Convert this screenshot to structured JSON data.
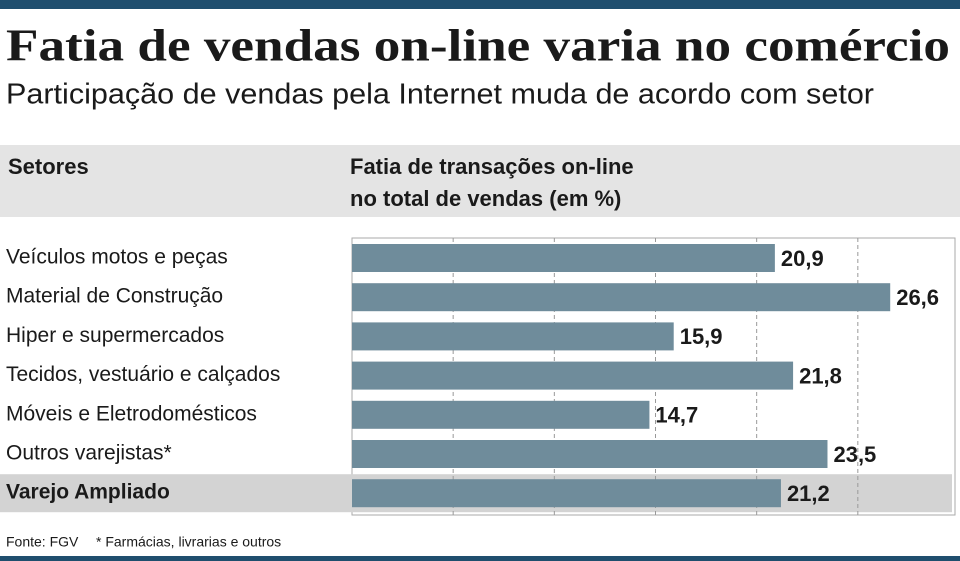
{
  "chart_data": {
    "type": "barh",
    "title": "Fatia de vendas on-line varia no comércio",
    "subtitle": "Participação de vendas pela Internet muda de acordo com setor",
    "category_header": "Setores",
    "value_header": [
      "Fatia de transações on-line",
      "no total de vendas (em %)"
    ],
    "categories": [
      "Veículos motos e peças",
      "Material de Construção",
      "Hiper e supermercados",
      "Tecidos, vestuário e calçados",
      "Móveis e Eletrodomésticos",
      "Outros varejistas*",
      "Varejo Ampliado"
    ],
    "values": [
      20.9,
      26.6,
      15.9,
      21.8,
      14.7,
      23.5,
      21.2
    ],
    "value_labels": [
      "20,9",
      "26,6",
      "15,9",
      "21,8",
      "14,7",
      "23,5",
      "21,2"
    ],
    "color": "#6f8c9b",
    "highlight_index": 6,
    "xlim": [
      0,
      30
    ],
    "xticks": [
      5,
      10,
      15,
      20,
      25
    ],
    "grid": true,
    "source": "Fonte: FGV",
    "note": "* Farmácias, livrarias e outros"
  }
}
